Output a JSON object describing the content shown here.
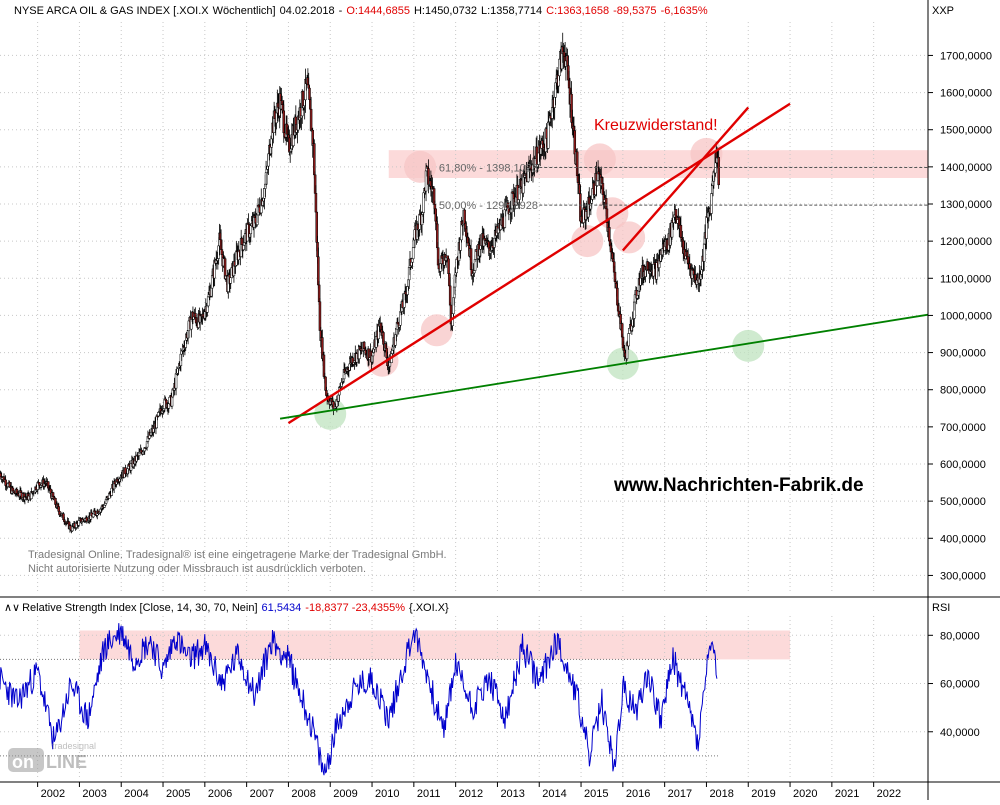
{
  "header": {
    "instrument": "NYSE ARCA OIL & GAS INDEX [.XOI.X",
    "period": "Wöchentlich]",
    "date": "04.02.2018",
    "open": "O:1444,6855",
    "high": "H:1450,0732",
    "low": "L:1358,7714",
    "close": "C:1363,1658",
    "change": "-89,5375",
    "change_pct": "-6,1635%"
  },
  "colors": {
    "red": "#e00000",
    "green": "#008000",
    "blue": "#0000cc",
    "band": "#fbd3d3",
    "grid": "#c8c8c8"
  },
  "chart_data": [
    {
      "type": "candlestick",
      "symbol": "XXP",
      "y_ticks": [
        "1700,0000",
        "1600,0000",
        "1500,0000",
        "1400,0000",
        "1300,0000",
        "1200,0000",
        "1100,0000",
        "1000,0000",
        "900,0000",
        "800,0000",
        "700,0000",
        "600,0000",
        "500,0000",
        "400,0000",
        "300,0000"
      ],
      "y_tick_values": [
        1700,
        1600,
        1500,
        1400,
        1300,
        1200,
        1100,
        1000,
        900,
        800,
        700,
        600,
        500,
        400,
        300
      ],
      "ylim": [
        250,
        1790
      ],
      "x_ticks": [
        "2002",
        "2003",
        "2004",
        "2005",
        "2006",
        "2007",
        "2008",
        "2009",
        "2010",
        "2011",
        "2012",
        "2013",
        "2014",
        "2015",
        "2016",
        "2017",
        "2018",
        "2019",
        "2020",
        "2021",
        "2022"
      ],
      "x_tick_values": [
        2002,
        2003,
        2004,
        2005,
        2006,
        2007,
        2008,
        2009,
        2010,
        2011,
        2012,
        2013,
        2014,
        2015,
        2016,
        2017,
        2018,
        2019,
        2020,
        2021,
        2022
      ],
      "xlim": [
        2001.1,
        2023.3
      ],
      "price_path": [
        [
          2001.1,
          575
        ],
        [
          2001.4,
          525
        ],
        [
          2001.8,
          510
        ],
        [
          2002.0,
          545
        ],
        [
          2002.2,
          550
        ],
        [
          2002.5,
          475
        ],
        [
          2002.8,
          425
        ],
        [
          2003.0,
          445
        ],
        [
          2003.3,
          460
        ],
        [
          2003.6,
          490
        ],
        [
          2003.9,
          560
        ],
        [
          2004.2,
          590
        ],
        [
          2004.5,
          635
        ],
        [
          2004.8,
          700
        ],
        [
          2005.0,
          760
        ],
        [
          2005.2,
          770
        ],
        [
          2005.45,
          900
        ],
        [
          2005.7,
          1000
        ],
        [
          2005.9,
          980
        ],
        [
          2006.1,
          1050
        ],
        [
          2006.35,
          1200
        ],
        [
          2006.55,
          1080
        ],
        [
          2006.8,
          1170
        ],
        [
          2007.0,
          1220
        ],
        [
          2007.2,
          1250
        ],
        [
          2007.45,
          1350
        ],
        [
          2007.6,
          1500
        ],
        [
          2007.8,
          1580
        ],
        [
          2008.0,
          1450
        ],
        [
          2008.3,
          1560
        ],
        [
          2008.45,
          1620
        ],
        [
          2008.6,
          1450
        ],
        [
          2008.75,
          980
        ],
        [
          2008.9,
          790
        ],
        [
          2009.1,
          750
        ],
        [
          2009.3,
          830
        ],
        [
          2009.5,
          880
        ],
        [
          2009.8,
          910
        ],
        [
          2010.0,
          890
        ],
        [
          2010.2,
          980
        ],
        [
          2010.4,
          860
        ],
        [
          2010.6,
          970
        ],
        [
          2010.8,
          1050
        ],
        [
          2011.0,
          1200
        ],
        [
          2011.2,
          1280
        ],
        [
          2011.3,
          1380
        ],
        [
          2011.5,
          1320
        ],
        [
          2011.6,
          1120
        ],
        [
          2011.8,
          1180
        ],
        [
          2011.9,
          960
        ],
        [
          2012.0,
          1120
        ],
        [
          2012.2,
          1280
        ],
        [
          2012.4,
          1120
        ],
        [
          2012.6,
          1200
        ],
        [
          2012.8,
          1180
        ],
        [
          2013.0,
          1220
        ],
        [
          2013.3,
          1300
        ],
        [
          2013.6,
          1350
        ],
        [
          2013.8,
          1400
        ],
        [
          2014.0,
          1440
        ],
        [
          2014.2,
          1480
        ],
        [
          2014.3,
          1560
        ],
        [
          2014.5,
          1680
        ],
        [
          2014.6,
          1720
        ],
        [
          2014.75,
          1580
        ],
        [
          2014.9,
          1400
        ],
        [
          2015.0,
          1250
        ],
        [
          2015.2,
          1300
        ],
        [
          2015.4,
          1380
        ],
        [
          2015.55,
          1320
        ],
        [
          2015.7,
          1200
        ],
        [
          2015.8,
          1100
        ],
        [
          2015.9,
          1020
        ],
        [
          2016.05,
          880
        ],
        [
          2016.2,
          980
        ],
        [
          2016.4,
          1100
        ],
        [
          2016.6,
          1140
        ],
        [
          2016.8,
          1120
        ],
        [
          2016.95,
          1180
        ],
        [
          2017.1,
          1200
        ],
        [
          2017.25,
          1290
        ],
        [
          2017.45,
          1180
        ],
        [
          2017.6,
          1130
        ],
        [
          2017.8,
          1090
        ],
        [
          2017.9,
          1140
        ],
        [
          2018.0,
          1240
        ],
        [
          2018.1,
          1300
        ],
        [
          2018.18,
          1400
        ],
        [
          2018.25,
          1445
        ],
        [
          2018.3,
          1363
        ]
      ],
      "band": {
        "y0": 1370,
        "y1": 1445,
        "x0": 2010.4,
        "x1": 2023.3
      },
      "levels": [
        {
          "value": 1398.1023,
          "label": "61,80% - 1398,1023"
        },
        {
          "value": 1296.8928,
          "label": "50,00% - 1296,8928"
        }
      ],
      "trendlines": [
        {
          "color": "red",
          "points": [
            [
              2008.0,
              710
            ],
            [
              2020.0,
              1570
            ]
          ]
        },
        {
          "color": "red",
          "points": [
            [
              2016.0,
              1175
            ],
            [
              2019.0,
              1560
            ]
          ]
        },
        {
          "color": "green",
          "points": [
            [
              2007.8,
              722
            ],
            [
              2023.3,
              1002
            ]
          ]
        }
      ],
      "markers": [
        {
          "color": "green",
          "x": 2009.0,
          "y": 735
        },
        {
          "color": "green",
          "x": 2016.0,
          "y": 870
        },
        {
          "color": "green",
          "x": 2019.0,
          "y": 918
        },
        {
          "color": "red",
          "x": 2010.25,
          "y": 878
        },
        {
          "color": "red",
          "x": 2011.55,
          "y": 960
        },
        {
          "color": "red",
          "x": 2011.15,
          "y": 1400
        },
        {
          "color": "red",
          "x": 2015.15,
          "y": 1200
        },
        {
          "color": "red",
          "x": 2015.45,
          "y": 1420
        },
        {
          "color": "red",
          "x": 2015.75,
          "y": 1275
        },
        {
          "color": "red",
          "x": 2016.15,
          "y": 1210
        },
        {
          "color": "red",
          "x": 2018.0,
          "y": 1435
        }
      ],
      "annotation": "Kreuzwiderstand!",
      "watermark_url": "www.Nachrichten-Fabrik.de",
      "disclaimer": [
        "Tradesignal Online. Tradesignal® ist eine eingetragene Marke der Tradesignal GmbH.",
        "Nicht autorisierte Nutzung oder Missbrauch ist ausdrücklich verboten."
      ]
    },
    {
      "type": "line",
      "indicator_label": "Relative Strength Index [Close, 14, 30, 70, Nein]",
      "indicator_value": "61,5434",
      "indicator_change": "-18,8377 -23,4355%",
      "indicator_symbol": "{.XOI.X}",
      "ylabel": "RSI",
      "y_ticks": [
        "80,0000",
        "60,0000",
        "40,0000"
      ],
      "y_tick_values": [
        80,
        60,
        40
      ],
      "ylim": [
        20,
        88
      ],
      "thresholds": [
        30,
        70
      ],
      "band": {
        "y0": 70,
        "y1": 82,
        "x0": 2003.0,
        "x1": 2020.0
      },
      "series": [
        {
          "color": "blue",
          "x": [
            2001.1,
            2001.5,
            2002.0,
            2002.4,
            2002.8,
            2003.2,
            2003.6,
            2004.0,
            2004.3,
            2004.7,
            2005.0,
            2005.3,
            2005.6,
            2006.0,
            2006.4,
            2006.8,
            2007.2,
            2007.6,
            2008.0,
            2008.3,
            2008.6,
            2008.85,
            2009.2,
            2009.6,
            2010.0,
            2010.4,
            2010.8,
            2011.0,
            2011.3,
            2011.7,
            2012.0,
            2012.4,
            2012.8,
            2013.2,
            2013.6,
            2014.0,
            2014.4,
            2014.6,
            2014.9,
            2015.2,
            2015.5,
            2015.8,
            2016.0,
            2016.3,
            2016.6,
            2016.9,
            2017.2,
            2017.5,
            2017.8,
            2018.0,
            2018.1,
            2018.25
          ],
          "values": [
            62,
            52,
            65,
            35,
            60,
            45,
            75,
            82,
            70,
            78,
            65,
            80,
            70,
            75,
            60,
            72,
            55,
            78,
            70,
            55,
            40,
            22,
            45,
            58,
            62,
            45,
            70,
            82,
            65,
            40,
            68,
            50,
            62,
            45,
            75,
            60,
            78,
            70,
            55,
            30,
            52,
            25,
            58,
            48,
            65,
            45,
            70,
            55,
            35,
            65,
            78,
            62
          ]
        }
      ]
    }
  ]
}
